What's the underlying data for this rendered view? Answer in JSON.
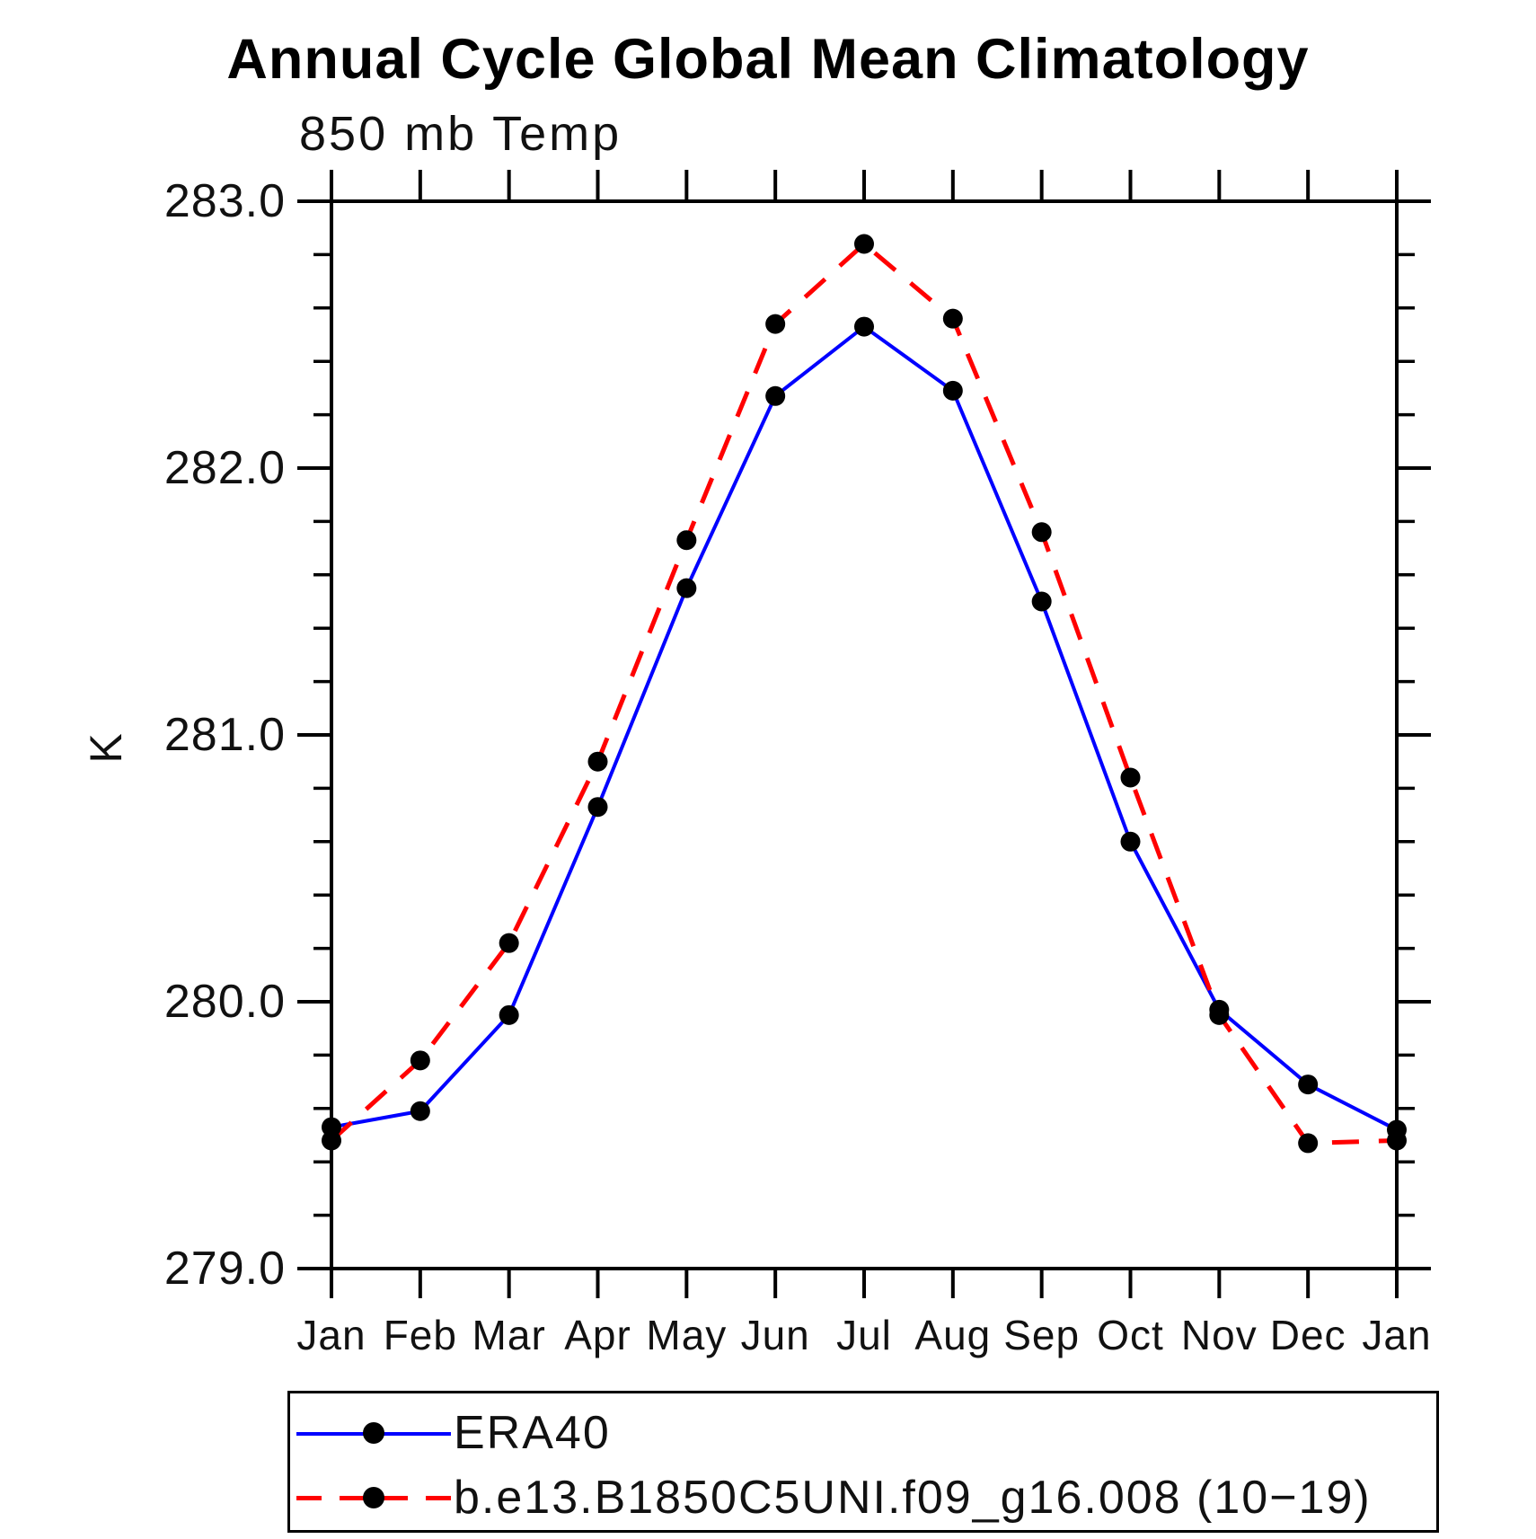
{
  "chart_data": {
    "type": "line",
    "title": "Annual Cycle Global Mean Climatology",
    "subtitle": "850 mb Temp",
    "ylabel": "K",
    "x_categories": [
      "Jan",
      "Feb",
      "Mar",
      "Apr",
      "May",
      "Jun",
      "Jul",
      "Aug",
      "Sep",
      "Oct",
      "Nov",
      "Dec",
      "Jan"
    ],
    "ylim": [
      279.0,
      283.0
    ],
    "ytick_major": [
      283.0,
      282.0,
      281.0,
      280.0,
      279.0
    ],
    "ytick_minor_step": 0.2,
    "grid": false,
    "legend_position": "bottom",
    "series": [
      {
        "name": "ERA40",
        "color": "#0000ff",
        "style": "solid",
        "marker": "black-circle",
        "values": [
          279.53,
          279.59,
          279.95,
          280.73,
          281.55,
          282.27,
          282.53,
          282.29,
          281.5,
          280.6,
          279.97,
          279.69,
          279.52
        ]
      },
      {
        "name": "b.e13.B1850C5UNI.f09_g16.008 (10−19)",
        "color": "#ff0000",
        "style": "dashed",
        "marker": "black-circle",
        "values": [
          279.48,
          279.78,
          280.22,
          280.9,
          281.73,
          282.54,
          282.84,
          282.56,
          281.76,
          280.84,
          279.95,
          279.47,
          279.48
        ]
      }
    ]
  }
}
